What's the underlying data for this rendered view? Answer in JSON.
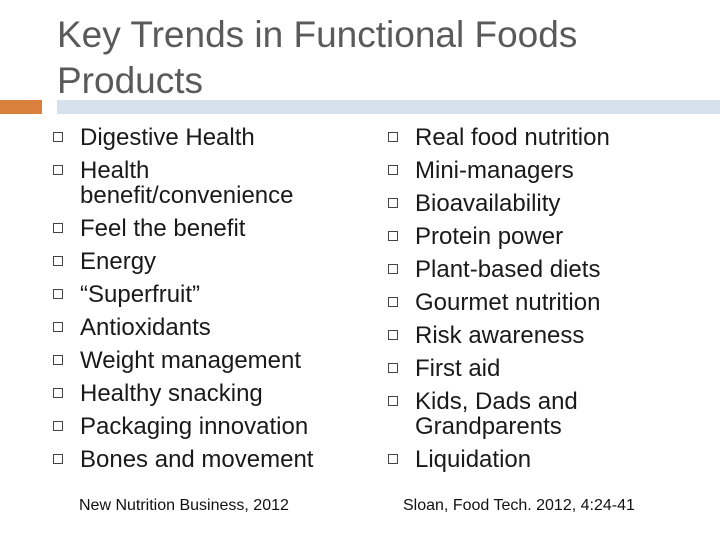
{
  "slide": {
    "title": "Key Trends in Functional Foods Products",
    "left_column": {
      "items": [
        "Digestive Health",
        "Health benefit/convenience",
        "Feel the benefit",
        "Energy",
        "“Superfruit”",
        "Antioxidants",
        "Weight management",
        "Healthy snacking",
        "Packaging innovation",
        "Bones and movement"
      ],
      "source": "New Nutrition Business, 2012"
    },
    "right_column": {
      "items": [
        "Real food nutrition",
        "Mini-managers",
        "Bioavailability",
        "Protein power",
        "Plant-based diets",
        "Gourmet nutrition",
        "Risk awareness",
        "First aid",
        "Kids, Dads and Grandparents",
        "Liquidation"
      ],
      "source": "Sloan, Food Tech. 2012, 4:24-41"
    },
    "colors": {
      "accent": "#d9803d",
      "rule": "#d7e1ec",
      "title": "#5a5a5a"
    }
  }
}
